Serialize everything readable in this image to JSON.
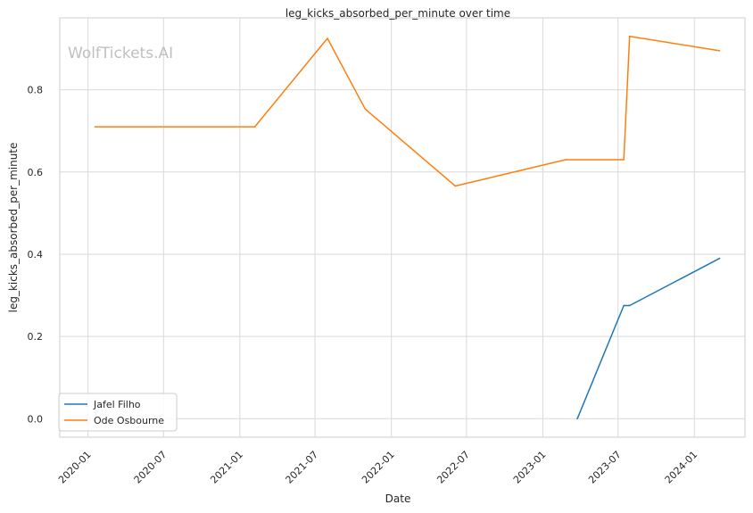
{
  "chart_data": {
    "type": "line",
    "title": "leg_kicks_absorbed_per_minute over time",
    "xlabel": "Date",
    "ylabel": "leg_kicks_absorbed_per_minute",
    "watermark": "WolfTickets.AI",
    "x_ticks": [
      "2020-01",
      "2020-07",
      "2021-01",
      "2021-07",
      "2022-01",
      "2022-07",
      "2023-01",
      "2023-07",
      "2024-01"
    ],
    "y_ticks": [
      "0.0",
      "0.2",
      "0.4",
      "0.6",
      "0.8"
    ],
    "xlim": [
      "2019-10-25",
      "2024-05-02"
    ],
    "ylim": [
      -0.045,
      0.975
    ],
    "grid": true,
    "legend_position": "lower-left",
    "series": [
      {
        "name": "Jafel Filho",
        "color": "#1f77b4",
        "points": [
          {
            "x": "2023-03-25",
            "y": 0.0
          },
          {
            "x": "2023-07-15",
            "y": 0.275
          },
          {
            "x": "2023-07-29",
            "y": 0.275
          },
          {
            "x": "2024-03-02",
            "y": 0.39
          }
        ]
      },
      {
        "name": "Ode Osbourne",
        "color": "#ff7f0e",
        "points": [
          {
            "x": "2020-01-18",
            "y": 0.71
          },
          {
            "x": "2021-02-06",
            "y": 0.71
          },
          {
            "x": "2021-07-31",
            "y": 0.925
          },
          {
            "x": "2021-10-30",
            "y": 0.753
          },
          {
            "x": "2022-06-04",
            "y": 0.566
          },
          {
            "x": "2023-02-25",
            "y": 0.63
          },
          {
            "x": "2023-07-15",
            "y": 0.63
          },
          {
            "x": "2023-07-29",
            "y": 0.93
          },
          {
            "x": "2024-03-02",
            "y": 0.895
          }
        ]
      }
    ]
  }
}
